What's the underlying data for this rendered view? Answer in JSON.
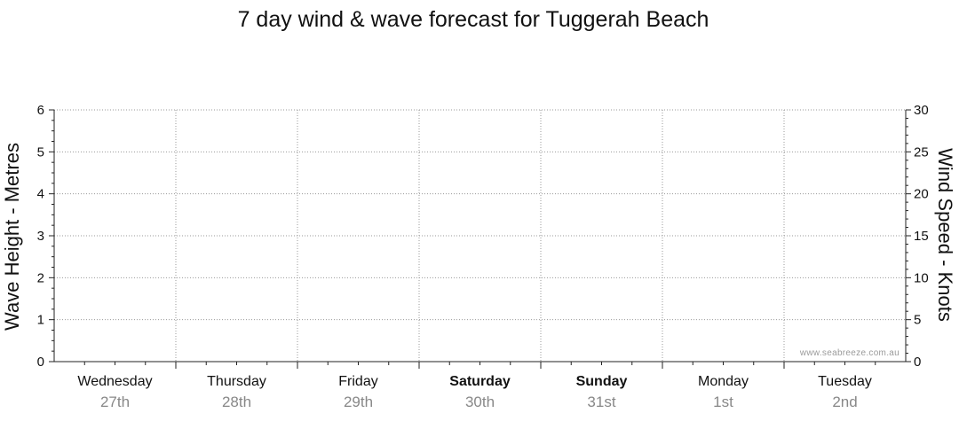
{
  "chart_data": {
    "type": "line",
    "title": "7 day wind & wave forecast for Tuggerah Beach",
    "y_left": {
      "label": "Wave Height - Metres",
      "range": [
        0,
        6
      ],
      "ticks": [
        0,
        1,
        2,
        3,
        4,
        5,
        6
      ]
    },
    "y_right": {
      "label": "Wind Speed - Knots",
      "range": [
        0,
        30
      ],
      "ticks": [
        0,
        5,
        10,
        15,
        20,
        25,
        30
      ]
    },
    "days": [
      {
        "name": "Wednesday",
        "date": "27th",
        "bold": false
      },
      {
        "name": "Thursday",
        "date": "28th",
        "bold": false
      },
      {
        "name": "Friday",
        "date": "29th",
        "bold": false
      },
      {
        "name": "Saturday",
        "date": "30th",
        "bold": true
      },
      {
        "name": "Sunday",
        "date": "31st",
        "bold": true
      },
      {
        "name": "Monday",
        "date": "1st",
        "bold": false
      },
      {
        "name": "Tuesday",
        "date": "2nd",
        "bold": false
      }
    ],
    "series": [],
    "grid": true,
    "watermark": "www.seabreeze.com.au"
  }
}
